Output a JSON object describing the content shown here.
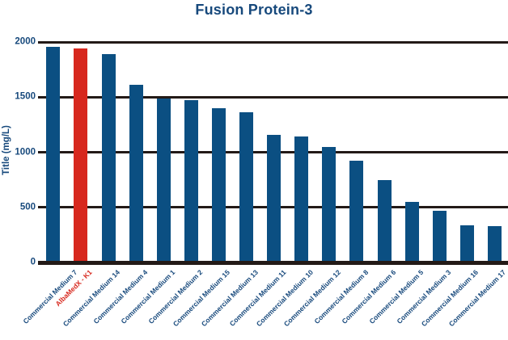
{
  "title": "Fusion Protein-3",
  "y_axis": {
    "label": "Title (mg/L)",
    "ticks": [
      "0",
      "500",
      "1000",
      "1500",
      "2000"
    ]
  },
  "chart_data": {
    "type": "bar",
    "title": "Fusion Protein-3",
    "xlabel": "",
    "ylabel": "Title (mg/L)",
    "ylim": [
      0,
      2000
    ],
    "yticks": [
      0,
      500,
      1000,
      1500,
      2000
    ],
    "grid": "horizontal",
    "legend": "none",
    "categories": [
      "Commercial Medium 7",
      "AlbaMedX - K1",
      "Commercial Medium 14",
      "Commercial Medium 4",
      "Commercial Medium 1",
      "Commercial Medium 2",
      "Commercial Medium 15",
      "Commercial Medium 13",
      "Commercial Medium 11",
      "Commercial Medium 10",
      "Commercial Medium 12",
      "Commercial Medium 8",
      "Commercial Medium 6",
      "Commercial Medium 5",
      "Commercial Medium 3",
      "Commercial Medium 16",
      "Commercial Medium 17"
    ],
    "values": [
      1960,
      1945,
      1890,
      1610,
      1490,
      1470,
      1400,
      1360,
      1155,
      1145,
      1050,
      925,
      745,
      550,
      470,
      335,
      330
    ],
    "highlight_index": 1
  },
  "colors": {
    "bar": "#0b4f82",
    "highlight": "#d7281e",
    "text_blue": "#17497c",
    "grid": "#231a17"
  }
}
